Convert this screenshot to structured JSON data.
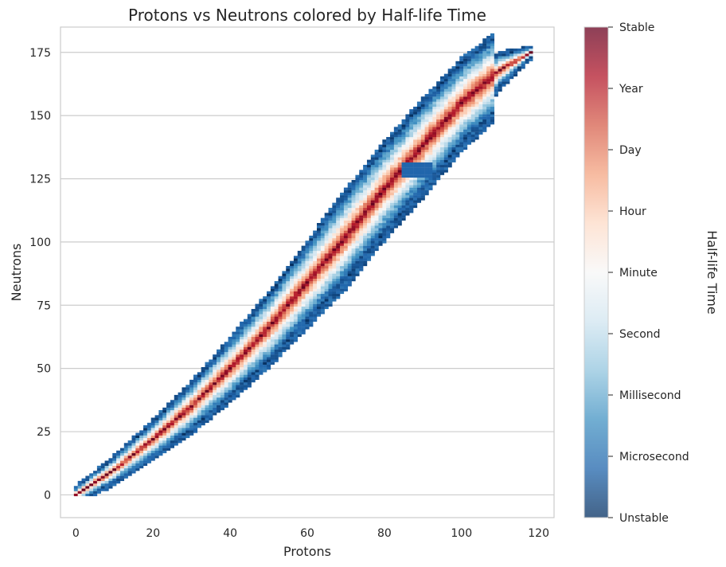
{
  "chart_data": {
    "type": "scatter",
    "title": "Protons vs Neutrons colored by Half-life Time",
    "xlabel": "Protons",
    "ylabel": "Neutrons",
    "xlim": [
      -4,
      124
    ],
    "ylim": [
      -9,
      185
    ],
    "x_ticks": [
      0,
      20,
      40,
      60,
      80,
      100,
      120
    ],
    "y_ticks": [
      0,
      25,
      50,
      75,
      100,
      125,
      150,
      175
    ],
    "grid": "horizontal",
    "colorbar": {
      "label": "Half-life Time",
      "ticks": [
        "Unstable",
        "Microsecond",
        "Millisecond",
        "Second",
        "Minute",
        "Hour",
        "Day",
        "Year",
        "Stable"
      ],
      "colors": [
        "#053061",
        "#2166ac",
        "#4393c3",
        "#92c5de",
        "#d1e5f0",
        "#f7f7f7",
        "#fddbc7",
        "#f4a582",
        "#d6604d",
        "#b2182b",
        "#67001f"
      ]
    },
    "valley_of_stability": [
      {
        "protons": 0,
        "neutrons": 0
      },
      {
        "protons": 10,
        "neutrons": 10
      },
      {
        "protons": 20,
        "neutrons": 22
      },
      {
        "protons": 30,
        "neutrons": 35
      },
      {
        "protons": 40,
        "neutrons": 50
      },
      {
        "protons": 50,
        "neutrons": 66
      },
      {
        "protons": 60,
        "neutrons": 84
      },
      {
        "protons": 70,
        "neutrons": 102
      },
      {
        "protons": 80,
        "neutrons": 121
      },
      {
        "protons": 90,
        "neutrons": 138
      },
      {
        "protons": 100,
        "neutrons": 155
      },
      {
        "protons": 110,
        "neutrons": 168
      },
      {
        "protons": 118,
        "neutrons": 175
      }
    ]
  }
}
